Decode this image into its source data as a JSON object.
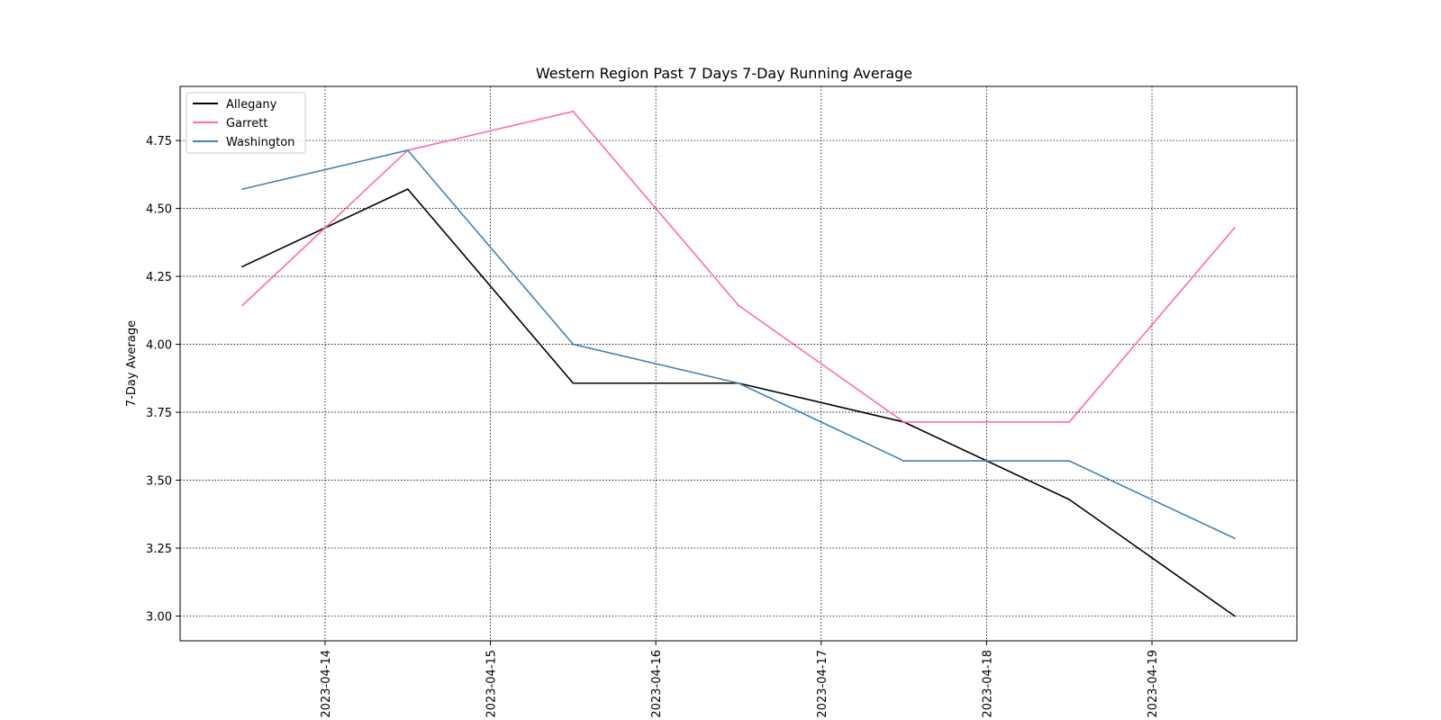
{
  "chart_data": {
    "type": "line",
    "title": "Western Region Past 7 Days 7-Day Running Average",
    "xlabel": "",
    "ylabel": "7-Day Average",
    "x": [
      "2023-04-13 12:00",
      "2023-04-14 12:00",
      "2023-04-15 12:00",
      "2023-04-16 12:00",
      "2023-04-17 12:00",
      "2023-04-18 12:00",
      "2023-04-19 12:00"
    ],
    "xlim": [
      "2023-04-13 02:58",
      "2023-04-19 21:02"
    ],
    "xticks": [
      "2023-04-14",
      "2023-04-15",
      "2023-04-16",
      "2023-04-17",
      "2023-04-18",
      "2023-04-19"
    ],
    "ylim": [
      2.909,
      4.949
    ],
    "yticks": [
      3.0,
      3.25,
      3.5,
      3.75,
      4.0,
      4.25,
      4.5,
      4.75
    ],
    "grid": true,
    "legend_position": "upper-left",
    "series": [
      {
        "name": "Allegany",
        "color": "#000000",
        "values": [
          4.286,
          4.571,
          3.857,
          3.857,
          3.714,
          3.429,
          3.0
        ]
      },
      {
        "name": "Garrett",
        "color": "#ff69b4",
        "values": [
          4.143,
          4.714,
          4.857,
          4.143,
          3.714,
          3.714,
          4.429
        ]
      },
      {
        "name": "Washington",
        "color": "#4682b4",
        "values": [
          4.571,
          4.714,
          4.0,
          3.857,
          3.571,
          3.571,
          3.286
        ]
      }
    ]
  }
}
